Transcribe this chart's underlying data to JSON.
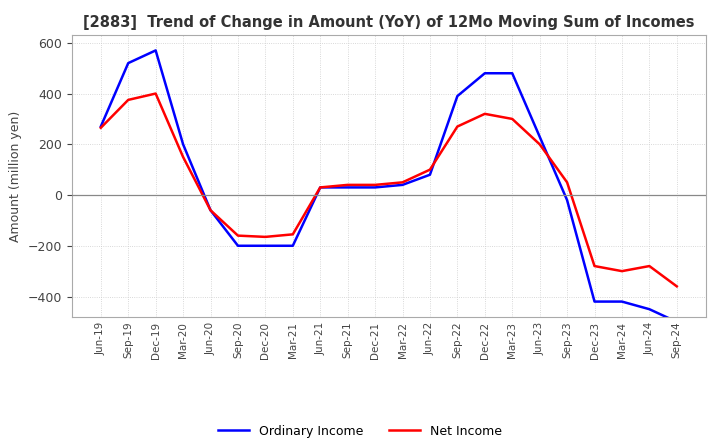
{
  "title": "[2883]  Trend of Change in Amount (YoY) of 12Mo Moving Sum of Incomes",
  "ylabel": "Amount (million yen)",
  "ylim": [
    -480,
    630
  ],
  "yticks": [
    -400,
    -200,
    0,
    200,
    400,
    600
  ],
  "background_color": "#ffffff",
  "grid_color": "#cccccc",
  "ordinary_income_color": "#0000ff",
  "net_income_color": "#ff0000",
  "x_labels": [
    "Jun-19",
    "Sep-19",
    "Dec-19",
    "Mar-20",
    "Jun-20",
    "Sep-20",
    "Dec-20",
    "Mar-21",
    "Jun-21",
    "Sep-21",
    "Dec-21",
    "Mar-22",
    "Jun-22",
    "Sep-22",
    "Dec-22",
    "Mar-23",
    "Jun-23",
    "Sep-23",
    "Dec-23",
    "Mar-24",
    "Jun-24",
    "Sep-24"
  ],
  "ordinary_income": [
    270,
    520,
    570,
    200,
    -60,
    -200,
    -200,
    -200,
    30,
    30,
    30,
    40,
    80,
    390,
    480,
    480,
    230,
    -20,
    -420,
    -420,
    -450,
    -500
  ],
  "net_income": [
    265,
    375,
    400,
    150,
    -60,
    -160,
    -165,
    -155,
    30,
    40,
    40,
    50,
    100,
    270,
    320,
    300,
    200,
    50,
    -280,
    -300,
    -280,
    -360
  ]
}
